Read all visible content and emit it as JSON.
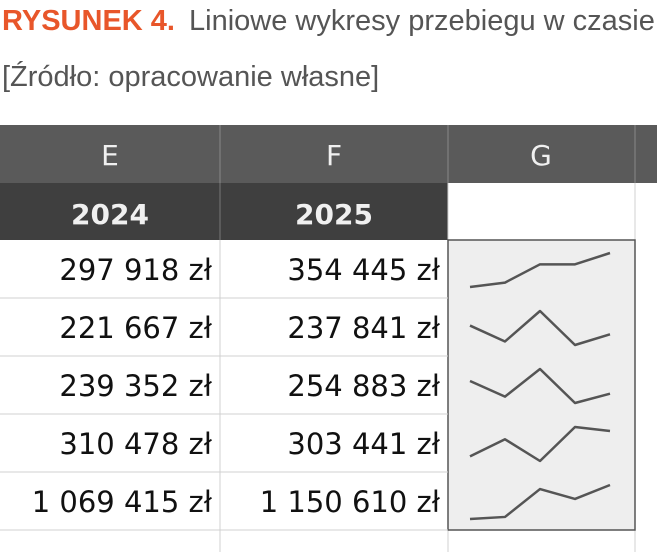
{
  "caption": {
    "label": "RYSUNEK 4.",
    "title": "Liniowe wykresy przebiegu w czasie",
    "source": "[Źródło: opracowanie własne]"
  },
  "table": {
    "columns": [
      "E",
      "F",
      "G"
    ],
    "header": [
      "2024",
      "2025"
    ],
    "rows": [
      {
        "values": [
          297918,
          354445
        ],
        "labels": [
          "297 918 zł",
          "354 445 zł"
        ],
        "trend": [
          185000,
          207000,
          298000
        ]
      },
      {
        "values": [
          221667,
          237841
        ],
        "labels": [
          "221 667 zł",
          "237 841 zł"
        ],
        "trend": [
          251000,
          227000,
          273000
        ]
      },
      {
        "values": [
          239352,
          254883
        ],
        "labels": [
          "239 352 zł",
          "254 883 zł"
        ],
        "trend": [
          276000,
          250000,
          296000
        ]
      },
      {
        "values": [
          310478,
          303441
        ],
        "labels": [
          "310 478 zł",
          "303 441 zł"
        ],
        "trend": [
          259000,
          289000,
          251000
        ]
      },
      {
        "values": [
          1069415,
          1150610
        ],
        "labels": [
          "1 069 415 zł",
          "1 150 610 zł"
        ],
        "trend": [
          953000,
          965000,
          1127000
        ]
      }
    ]
  }
}
